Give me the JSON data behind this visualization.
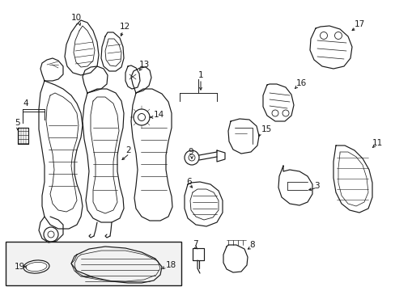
{
  "bg_color": "#ffffff",
  "line_color": "#1a1a1a",
  "line_width": 0.85,
  "font_size": 7.5,
  "figsize": [
    4.89,
    3.6
  ],
  "dpi": 100,
  "xlim": [
    0,
    489
  ],
  "ylim": [
    0,
    360
  ]
}
